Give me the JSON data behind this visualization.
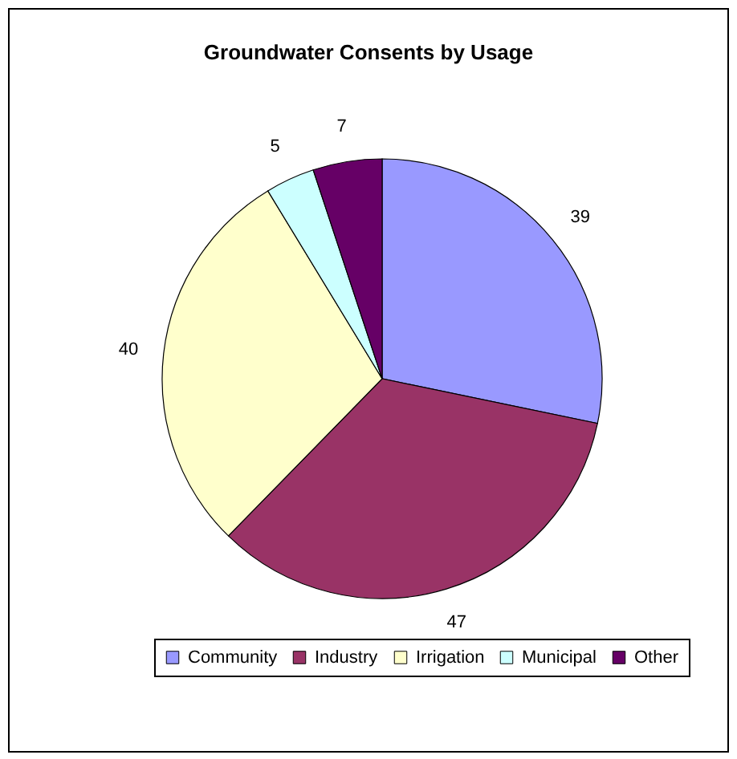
{
  "chart_data": {
    "type": "pie",
    "title": "Groundwater Consents by Usage",
    "categories": [
      "Community",
      "Industry",
      "Irrigation",
      "Municipal",
      "Other"
    ],
    "values": [
      39,
      47,
      40,
      5,
      7
    ],
    "colors": [
      "#9999ff",
      "#993366",
      "#ffffcc",
      "#ccffff",
      "#660066"
    ],
    "data_labels": true,
    "legend": "bottom"
  }
}
